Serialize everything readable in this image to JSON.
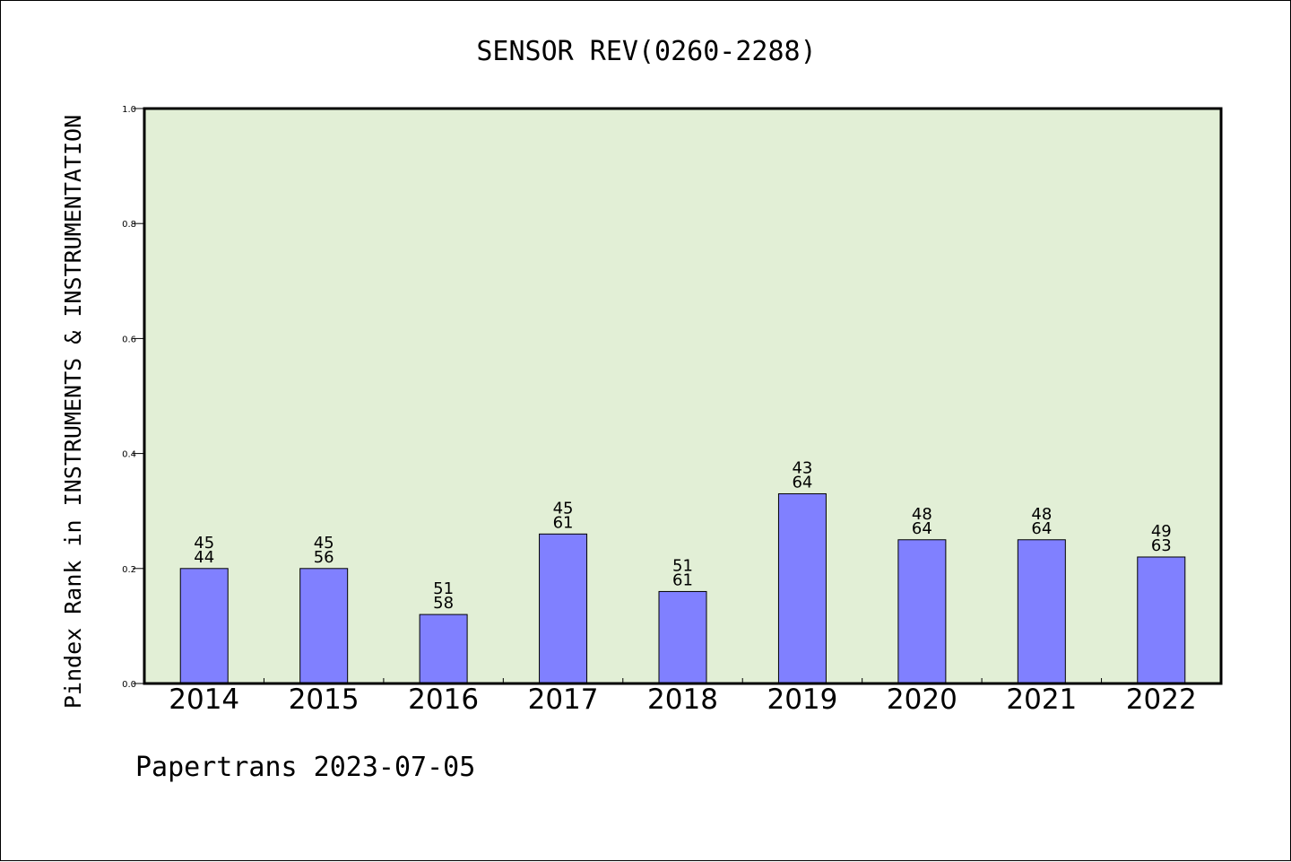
{
  "chart_data": {
    "type": "bar",
    "title": "SENSOR REV(0260-2288)",
    "xlabel": "",
    "ylabel": "Pindex Rank in INSTRUMENTS & INSTRUMENTATION",
    "categories": [
      "2014",
      "2015",
      "2016",
      "2017",
      "2018",
      "2019",
      "2020",
      "2021",
      "2022"
    ],
    "values": [
      0.2,
      0.2,
      0.12,
      0.26,
      0.16,
      0.33,
      0.25,
      0.25,
      0.22
    ],
    "label_top": [
      "45",
      "45",
      "51",
      "45",
      "51",
      "43",
      "48",
      "48",
      "49"
    ],
    "label_bottom": [
      "44",
      "56",
      "58",
      "61",
      "61",
      "64",
      "64",
      "64",
      "63"
    ],
    "ylim": [
      0,
      1.0
    ],
    "yticks": [
      "0.0",
      "0.2",
      "0.4",
      "0.6",
      "0.8",
      "1.0"
    ],
    "grid": false,
    "footer": "Papertrans 2023-07-05",
    "colors": {
      "plot_background": "#e2efd6",
      "bar_fill": "#8080ff",
      "bar_stroke": "#000000",
      "axis": "#000000"
    }
  }
}
